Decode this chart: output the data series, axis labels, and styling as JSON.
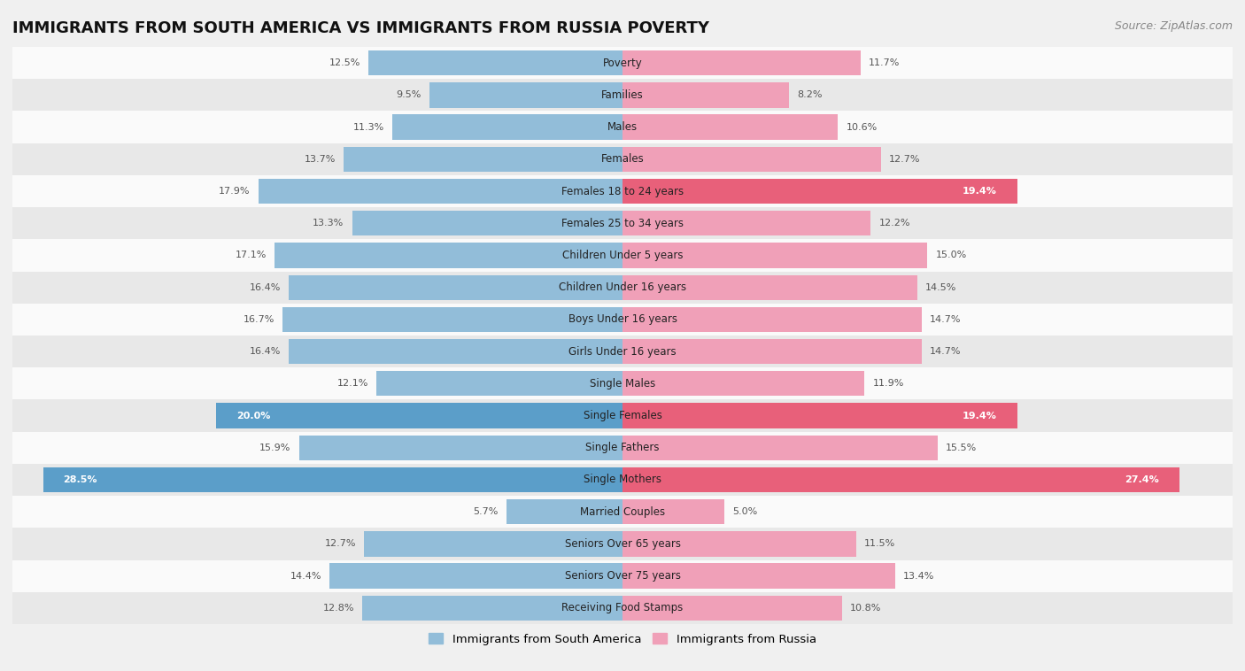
{
  "title": "IMMIGRANTS FROM SOUTH AMERICA VS IMMIGRANTS FROM RUSSIA POVERTY",
  "source": "Source: ZipAtlas.com",
  "categories": [
    "Poverty",
    "Families",
    "Males",
    "Females",
    "Females 18 to 24 years",
    "Females 25 to 34 years",
    "Children Under 5 years",
    "Children Under 16 years",
    "Boys Under 16 years",
    "Girls Under 16 years",
    "Single Males",
    "Single Females",
    "Single Fathers",
    "Single Mothers",
    "Married Couples",
    "Seniors Over 65 years",
    "Seniors Over 75 years",
    "Receiving Food Stamps"
  ],
  "south_america": [
    12.5,
    9.5,
    11.3,
    13.7,
    17.9,
    13.3,
    17.1,
    16.4,
    16.7,
    16.4,
    12.1,
    20.0,
    15.9,
    28.5,
    5.7,
    12.7,
    14.4,
    12.8
  ],
  "russia": [
    11.7,
    8.2,
    10.6,
    12.7,
    19.4,
    12.2,
    15.0,
    14.5,
    14.7,
    14.7,
    11.9,
    19.4,
    15.5,
    27.4,
    5.0,
    11.5,
    13.4,
    10.8
  ],
  "sa_highlight_indices": [
    11,
    13
  ],
  "ru_highlight_indices": [
    4,
    11,
    13
  ],
  "color_south_america": "#92bdd9",
  "color_russia": "#f0a0b8",
  "color_south_america_highlight": "#5b9ec9",
  "color_russia_highlight": "#e8607a",
  "background_color": "#f0f0f0",
  "row_bg_light": "#fafafa",
  "row_bg_dark": "#e8e8e8",
  "xlim": 30.0,
  "legend_label_left": "Immigrants from South America",
  "legend_label_right": "Immigrants from Russia",
  "title_fontsize": 13,
  "source_fontsize": 9,
  "bar_height": 0.78
}
